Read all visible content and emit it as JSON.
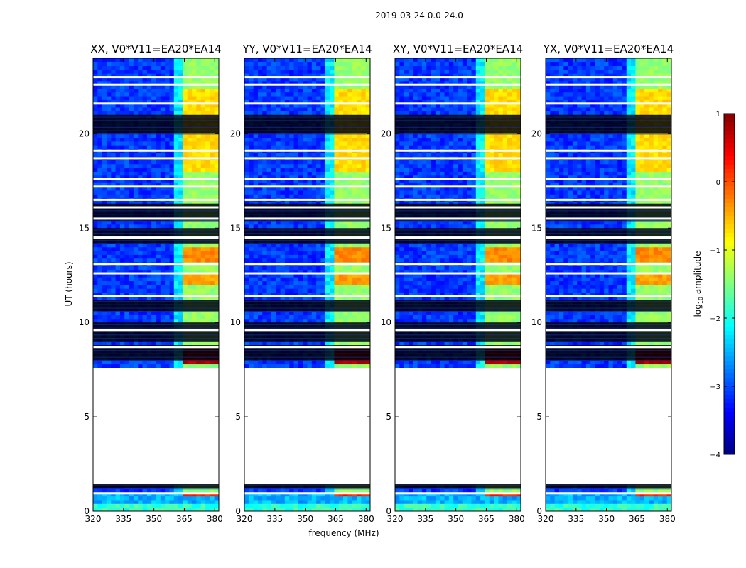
{
  "chart_data": {
    "type": "heatmap",
    "title": "2019-03-24 0.0-24.0",
    "xlabel": "frequency (MHz)",
    "ylabel": "UT (hours)",
    "xlim": [
      320,
      382
    ],
    "ylim": [
      0,
      24
    ],
    "x_ticks": [
      320,
      335,
      350,
      365,
      380
    ],
    "y_ticks": [
      0,
      5,
      10,
      15,
      20
    ],
    "panels": [
      {
        "title": "XX, V0*V11=EA20*EA14"
      },
      {
        "title": "YY, V0*V11=EA20*EA14"
      },
      {
        "title": "XY, V0*V11=EA20*EA14"
      },
      {
        "title": "YX, V0*V11=EA20*EA14"
      }
    ],
    "colorbar": {
      "label_prefix": "log",
      "label_sub": "10",
      "label_suffix": " amplitude",
      "ticks": [
        1,
        0,
        -1,
        -2,
        -3,
        -4
      ],
      "range": [
        -4,
        1
      ],
      "colormap": "jet"
    },
    "data_gaps_hours": [
      [
        1.5,
        7.6
      ]
    ],
    "dark_bands_hours": [
      [
        1.2,
        1.45
      ],
      [
        20.0,
        21.0
      ],
      [
        15.4,
        16.3
      ],
      [
        14.2,
        15.0
      ],
      [
        10.6,
        11.2
      ],
      [
        9.0,
        10.0
      ],
      [
        8.0,
        8.8
      ]
    ],
    "white_lines_hours": [
      23.0,
      22.6,
      21.6,
      19.1,
      18.7,
      17.6,
      17.2,
      16.5,
      16.1,
      15.5,
      14.5,
      13.1,
      12.6,
      11.4,
      9.6,
      8.7,
      0.95
    ],
    "bright_channels_mhz": [
      [
        364,
        368
      ],
      [
        369,
        373
      ],
      [
        374,
        377
      ],
      [
        378,
        381
      ]
    ],
    "bright_channel_level": {
      "hours_8_9": 0.8,
      "hours_13_14": -0.3,
      "hours_18_22": -0.7
    }
  }
}
